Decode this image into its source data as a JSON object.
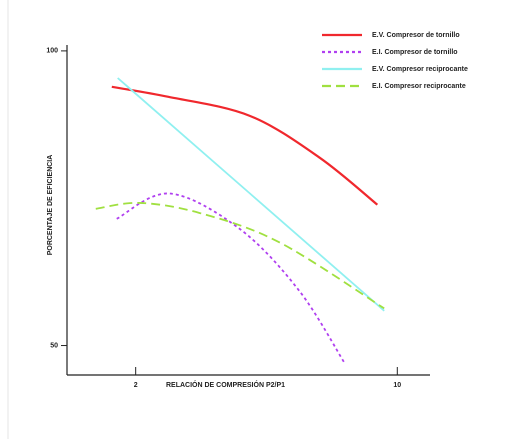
{
  "chart_data": {
    "type": "line",
    "xlabel": "RELACIÓN DE COMPRESIÓN P2/P1",
    "ylabel": "PORCENTAJE DE EFICIENCIA",
    "xlim": [
      -0.1,
      11
    ],
    "xticks": [
      2,
      10
    ],
    "ylim": [
      45,
      101
    ],
    "yticks": [
      100,
      50
    ],
    "legend": "upper right",
    "series": [
      {
        "name": "E.V. Compresor de tornillo",
        "color": "#f0282d",
        "style": "solid",
        "x": [
          1.27,
          3.0,
          5.48,
          7.62,
          9.39
        ],
        "values": [
          93.9,
          92.2,
          89.0,
          81.9,
          73.9
        ]
      },
      {
        "name": "E.I. Compresor de tornillo",
        "color": "#b040f0",
        "style": "dotted",
        "x": [
          1.42,
          3.04,
          5.18,
          7.0,
          8.38
        ],
        "values": [
          71.5,
          75.8,
          69.8,
          59.3,
          47.1
        ]
      },
      {
        "name": "E.V. Compresor reciprocante",
        "color": "#90f0f0",
        "style": "solid",
        "x": [
          1.45,
          9.6
        ],
        "values": [
          95.4,
          55.9
        ]
      },
      {
        "name": "E.I. Compresor reciprocante",
        "color": "#a0e040",
        "style": "dashed",
        "x": [
          0.78,
          2.12,
          3.95,
          6.4,
          9.6
        ],
        "values": [
          73.2,
          74.2,
          72.5,
          67.5,
          56.3
        ]
      }
    ]
  }
}
